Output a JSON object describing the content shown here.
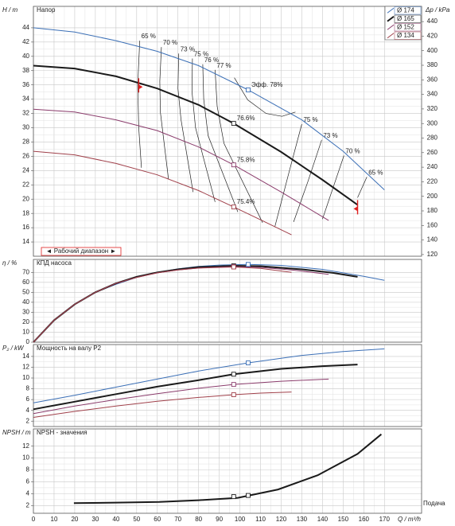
{
  "chart_data": [
    {
      "type": "line",
      "title": "Напор",
      "ylabel": "H / m",
      "y2label": "Δp / kPa",
      "xlim": [
        0,
        188
      ],
      "xticks": [
        0,
        10,
        20,
        30,
        40,
        50,
        60,
        70,
        80,
        90,
        100,
        110,
        120,
        130,
        140,
        150,
        160,
        170
      ],
      "ylim": [
        12,
        47
      ],
      "yticks": [
        14,
        16,
        18,
        20,
        22,
        24,
        26,
        28,
        30,
        32,
        34,
        36,
        38,
        40,
        42,
        44
      ],
      "y2lim": [
        117.7,
        460.9
      ],
      "y2ticks": [
        120,
        140,
        160,
        180,
        200,
        220,
        240,
        260,
        280,
        300,
        320,
        340,
        360,
        380,
        400,
        420,
        440
      ],
      "grid": true,
      "legend": "upper right",
      "range_label": "◄ Рабочий диапазон ►",
      "operating_range": [
        51,
        157
      ],
      "series": [
        {
          "name": "Ø 174",
          "color": "#3b6fb6",
          "width": 1,
          "x": [
            0,
            20,
            40,
            60,
            80,
            104,
            130,
            150,
            170
          ],
          "values": [
            44,
            43.4,
            42.2,
            40.7,
            38.7,
            35.3,
            31.1,
            26.7,
            21.3
          ],
          "points": [
            {
              "x": 104,
              "value": 35.3,
              "label": "Эфф. 78%"
            }
          ]
        },
        {
          "name": "Ø 165",
          "color": "#1a1a1a",
          "width": 2,
          "x": [
            0,
            20,
            40,
            60,
            80,
            97,
            120,
            140,
            157
          ],
          "values": [
            38.7,
            38.3,
            37.2,
            35.5,
            33.2,
            30.6,
            26.6,
            22.7,
            19.2
          ],
          "points": [
            {
              "x": 97,
              "value": 30.6,
              "label": "76.6%"
            }
          ]
        },
        {
          "name": "Ø 152",
          "color": "#8a3b6b",
          "width": 1,
          "x": [
            0,
            20,
            40,
            60,
            80,
            97,
            120,
            143
          ],
          "values": [
            32.6,
            32.2,
            31.1,
            29.6,
            27.3,
            24.8,
            21,
            17
          ],
          "points": [
            {
              "x": 97,
              "value": 24.8,
              "label": "75.8%"
            }
          ]
        },
        {
          "name": "Ø 134",
          "color": "#a0404a",
          "width": 1,
          "x": [
            0,
            20,
            40,
            60,
            80,
            97,
            110,
            125
          ],
          "values": [
            26.7,
            26.2,
            25,
            23.4,
            21.2,
            18.9,
            17.1,
            15
          ],
          "points": [
            {
              "x": 97,
              "value": 18.9,
              "label": "75.4%"
            }
          ]
        }
      ],
      "iso_lines": [
        {
          "label": "65 %",
          "x": [
            51.5,
            50.5,
            51,
            52.3
          ],
          "values": [
            42.2,
            36,
            30,
            24.4
          ]
        },
        {
          "label": "70 %",
          "x": [
            62,
            61.2,
            61.5,
            65.4
          ],
          "values": [
            41.3,
            36.5,
            32.2,
            22.8
          ]
        },
        {
          "label": "73 %",
          "x": [
            70.4,
            70,
            71.5,
            77.3
          ],
          "values": [
            40.4,
            35.5,
            31.1,
            21
          ]
        },
        {
          "label": "75 %",
          "x": [
            77,
            76.8,
            78.5,
            88
          ],
          "values": [
            39.7,
            35,
            30,
            19.6
          ]
        },
        {
          "label": "76 %",
          "x": [
            82,
            82.5,
            84.6,
            99
          ],
          "values": [
            38.9,
            34,
            28.9,
            18.2
          ]
        },
        {
          "label": "77 %",
          "x": [
            88,
            89,
            92.3,
            111
          ],
          "values": [
            38.1,
            33,
            27.8,
            16.7
          ]
        },
        {
          "x": [
            97.3,
            103.8,
            112.7,
            120.4,
            126.9
          ],
          "values": [
            37,
            33.9,
            32,
            31.6,
            32.2
          ]
        },
        {
          "label": "75 %",
          "x": [
            130,
            124,
            117
          ],
          "values": [
            30.5,
            24,
            16.2
          ]
        },
        {
          "label": "73 %",
          "x": [
            139.6,
            133,
            126
          ],
          "values": [
            28.3,
            22.5,
            16.8
          ]
        },
        {
          "label": "70 %",
          "x": [
            150.4,
            145,
            140
          ],
          "values": [
            26.1,
            21.5,
            17.2
          ]
        },
        {
          "label": "65 %",
          "x": [
            161.5,
            157
          ],
          "values": [
            23.1,
            20.2
          ]
        }
      ]
    },
    {
      "type": "line",
      "title": "КПД насоса",
      "ylabel": "η / %",
      "xlim": [
        0,
        188
      ],
      "xticks": [
        0,
        10,
        20,
        30,
        40,
        50,
        60,
        70,
        80,
        90,
        100,
        110,
        120,
        130,
        140,
        150,
        160,
        170
      ],
      "ylim": [
        0,
        83
      ],
      "yticks": [
        0,
        10,
        20,
        30,
        40,
        50,
        60,
        70
      ],
      "grid": true,
      "series": [
        {
          "color": "#3b6fb6",
          "width": 1,
          "x": [
            0,
            10,
            20,
            30,
            40,
            50,
            60,
            70,
            80,
            90,
            104,
            120,
            140,
            160,
            170
          ],
          "values": [
            0,
            22,
            38,
            50,
            58,
            65,
            70,
            73.5,
            76,
            77.3,
            78,
            77,
            73,
            66,
            62
          ],
          "points": [
            {
              "x": 104,
              "value": 78
            }
          ]
        },
        {
          "color": "#1a1a1a",
          "width": 2,
          "x": [
            0,
            10,
            20,
            30,
            40,
            50,
            60,
            70,
            80,
            97,
            110,
            130,
            145,
            157
          ],
          "values": [
            0,
            22,
            38,
            50,
            59,
            65.5,
            70,
            73,
            75.3,
            76.6,
            76.2,
            73,
            69.5,
            65.5
          ],
          "points": [
            {
              "x": 97,
              "value": 76.6
            }
          ]
        },
        {
          "color": "#8a3b6b",
          "width": 1,
          "x": [
            0,
            10,
            20,
            30,
            40,
            50,
            60,
            70,
            80,
            97,
            110,
            125,
            143
          ],
          "values": [
            0,
            22,
            38,
            50,
            59,
            65,
            69.5,
            72.5,
            74.5,
            75.8,
            75,
            72.5,
            68
          ],
          "points": [
            {
              "x": 97,
              "value": 75.8
            }
          ]
        },
        {
          "color": "#a0404a",
          "width": 1,
          "x": [
            0,
            10,
            20,
            30,
            40,
            50,
            60,
            70,
            80,
            97,
            110,
            125
          ],
          "values": [
            0,
            22,
            38,
            50,
            59,
            65,
            69.5,
            72.5,
            74.3,
            75.4,
            74,
            70
          ],
          "points": [
            {
              "x": 97,
              "value": 75.4
            }
          ]
        }
      ]
    },
    {
      "type": "line",
      "title": "Мощность на валу P2",
      "ylabel": "P₂ / kW",
      "xlim": [
        0,
        188
      ],
      "xticks": [
        0,
        10,
        20,
        30,
        40,
        50,
        60,
        70,
        80,
        90,
        100,
        110,
        120,
        130,
        140,
        150,
        160,
        170
      ],
      "ylim": [
        1,
        16.2
      ],
      "yticks": [
        2,
        4,
        6,
        8,
        10,
        12,
        14
      ],
      "grid": true,
      "series": [
        {
          "color": "#3b6fb6",
          "width": 1,
          "x": [
            0,
            20,
            40,
            60,
            80,
            104,
            130,
            150,
            170
          ],
          "values": [
            5.4,
            6.8,
            8.3,
            9.8,
            11.3,
            12.8,
            14.2,
            14.9,
            15.4
          ],
          "points": [
            {
              "x": 104,
              "value": 12.8
            }
          ]
        },
        {
          "color": "#1a1a1a",
          "width": 2,
          "x": [
            0,
            20,
            40,
            60,
            80,
            97,
            120,
            140,
            157
          ],
          "values": [
            4.2,
            5.6,
            7,
            8.4,
            9.6,
            10.7,
            11.7,
            12.2,
            12.5
          ],
          "points": [
            {
              "x": 97,
              "value": 10.7
            }
          ]
        },
        {
          "color": "#8a3b6b",
          "width": 1,
          "x": [
            0,
            20,
            40,
            60,
            80,
            97,
            120,
            143
          ],
          "values": [
            3.4,
            4.8,
            6,
            7.1,
            8.1,
            8.8,
            9.4,
            9.8
          ],
          "points": [
            {
              "x": 97,
              "value": 8.8
            }
          ]
        },
        {
          "color": "#a0404a",
          "width": 1,
          "x": [
            0,
            20,
            40,
            60,
            80,
            97,
            110,
            125
          ],
          "values": [
            2.7,
            3.8,
            4.8,
            5.7,
            6.4,
            6.9,
            7.2,
            7.4
          ],
          "points": [
            {
              "x": 97,
              "value": 6.9
            }
          ]
        }
      ]
    },
    {
      "type": "line",
      "title": "NPSH - значения",
      "ylabel": "NPSH / m",
      "xlabel": "Q / m³/h",
      "caption": "Подача",
      "xlim": [
        0,
        188
      ],
      "xticks": [
        0,
        10,
        20,
        30,
        40,
        50,
        60,
        70,
        80,
        90,
        100,
        110,
        120,
        130,
        140,
        150,
        160,
        170
      ],
      "ylim": [
        0.7,
        14.9
      ],
      "yticks": [
        2,
        4,
        6,
        8,
        10,
        12
      ],
      "grid": true,
      "series": [
        {
          "color": "#1a1a1a",
          "width": 2,
          "x": [
            19.6,
            40,
            61,
            80,
            99,
            118.5,
            137.7,
            157,
            168.5
          ],
          "values": [
            2.4,
            2.5,
            2.6,
            2.9,
            3.3,
            4.7,
            7.1,
            10.7,
            14
          ],
          "points": [
            {
              "x": 97,
              "value": 3.5
            },
            {
              "x": 104,
              "value": 3.7
            }
          ]
        }
      ]
    }
  ]
}
